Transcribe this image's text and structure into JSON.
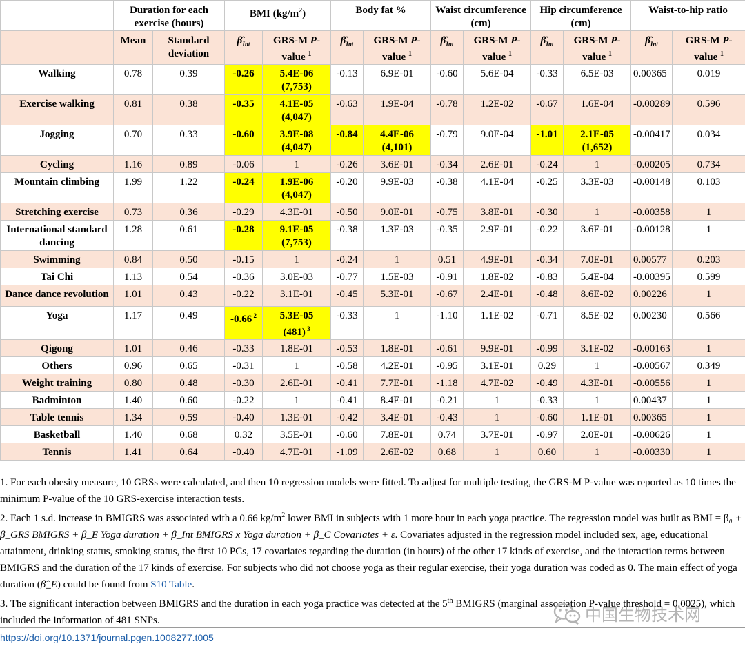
{
  "header": {
    "groups": [
      {
        "label": "Duration for each exercise (hours)",
        "span": 2
      },
      {
        "label": "BMI (kg/m",
        "sup": "2",
        "tail": ")",
        "span": 2
      },
      {
        "label": "Body fat %",
        "span": 2
      },
      {
        "label": "Waist circumference (cm)",
        "span": 2
      },
      {
        "label": "Hip circumference (cm)",
        "span": 2
      },
      {
        "label": "Waist-to-hip ratio",
        "span": 2
      }
    ],
    "sub_mean": "Mean",
    "sub_sd": "Standard deviation",
    "beta_symbol": "β̂",
    "beta_sub": "Int",
    "grs_label": "GRS-M",
    "p_label": "P",
    "value_label": "-value",
    "footnote_mark": "1"
  },
  "rows": [
    {
      "exercise": "Walking",
      "mean": "0.78",
      "sd": "0.39",
      "bmi_b": "-0.26",
      "bmi_p": "5.4E-06",
      "bmi_n": "(7,753)",
      "bf_b": "-0.13",
      "bf_p": "6.9E-01",
      "wc_b": "-0.60",
      "wc_p": "5.6E-04",
      "hc_b": "-0.33",
      "hc_p": "6.5E-03",
      "whr_b": "0.00365",
      "whr_p": "0.019"
    },
    {
      "exercise": "Exercise walking",
      "mean": "0.81",
      "sd": "0.38",
      "bmi_b": "-0.35",
      "bmi_p": "4.1E-05",
      "bmi_n": "(4,047)",
      "bf_b": "-0.63",
      "bf_p": "1.9E-04",
      "wc_b": "-0.78",
      "wc_p": "1.2E-02",
      "hc_b": "-0.67",
      "hc_p": "1.6E-04",
      "whr_b": "-0.00289",
      "whr_p": "0.596"
    },
    {
      "exercise": "Jogging",
      "mean": "0.70",
      "sd": "0.33",
      "bmi_b": "-0.60",
      "bmi_p": "3.9E-08",
      "bmi_n": "(4,047)",
      "bf_b": "-0.84",
      "bf_p": "4.4E-06",
      "bf_n": "(4,101)",
      "wc_b": "-0.79",
      "wc_p": "9.0E-04",
      "hc_b": "-1.01",
      "hc_p": "2.1E-05",
      "hc_n": "(1,652)",
      "whr_b": "-0.00417",
      "whr_p": "0.034"
    },
    {
      "exercise": "Cycling",
      "mean": "1.16",
      "sd": "0.89",
      "bmi_b": "-0.06",
      "bmi_p": "1",
      "bf_b": "-0.26",
      "bf_p": "3.6E-01",
      "wc_b": "-0.34",
      "wc_p": "2.6E-01",
      "hc_b": "-0.24",
      "hc_p": "1",
      "whr_b": "-0.00205",
      "whr_p": "0.734"
    },
    {
      "exercise": "Mountain climbing",
      "mean": "1.99",
      "sd": "1.22",
      "bmi_b": "-0.24",
      "bmi_p": "1.9E-06",
      "bmi_n": "(4,047)",
      "bf_b": "-0.20",
      "bf_p": "9.9E-03",
      "wc_b": "-0.38",
      "wc_p": "4.1E-04",
      "hc_b": "-0.25",
      "hc_p": "3.3E-03",
      "whr_b": "-0.00148",
      "whr_p": "0.103"
    },
    {
      "exercise": "Stretching exercise",
      "mean": "0.73",
      "sd": "0.36",
      "bmi_b": "-0.29",
      "bmi_p": "4.3E-01",
      "bf_b": "-0.50",
      "bf_p": "9.0E-01",
      "wc_b": "-0.75",
      "wc_p": "3.8E-01",
      "hc_b": "-0.30",
      "hc_p": "1",
      "whr_b": "-0.00358",
      "whr_p": "1"
    },
    {
      "exercise": "International standard dancing",
      "mean": "1.28",
      "sd": "0.61",
      "bmi_b": "-0.28",
      "bmi_p": "9.1E-05",
      "bmi_n": "(7,753)",
      "bf_b": "-0.38",
      "bf_p": "1.3E-03",
      "wc_b": "-0.35",
      "wc_p": "2.9E-01",
      "hc_b": "-0.22",
      "hc_p": "3.6E-01",
      "whr_b": "-0.00128",
      "whr_p": "1"
    },
    {
      "exercise": "Swimming",
      "mean": "0.84",
      "sd": "0.50",
      "bmi_b": "-0.15",
      "bmi_p": "1",
      "bf_b": "-0.24",
      "bf_p": "1",
      "wc_b": "0.51",
      "wc_p": "4.9E-01",
      "hc_b": "-0.34",
      "hc_p": "7.0E-01",
      "whr_b": "0.00577",
      "whr_p": "0.203"
    },
    {
      "exercise": "Tai Chi",
      "mean": "1.13",
      "sd": "0.54",
      "bmi_b": "-0.36",
      "bmi_p": "3.0E-03",
      "bf_b": "-0.77",
      "bf_p": "1.5E-03",
      "wc_b": "-0.91",
      "wc_p": "1.8E-02",
      "hc_b": "-0.83",
      "hc_p": "5.4E-04",
      "whr_b": "-0.00395",
      "whr_p": "0.599"
    },
    {
      "exercise": "Dance dance revolution",
      "mean": "1.01",
      "sd": "0.43",
      "bmi_b": "-0.22",
      "bmi_p": "3.1E-01",
      "bf_b": "-0.45",
      "bf_p": "5.3E-01",
      "wc_b": "-0.67",
      "wc_p": "2.4E-01",
      "hc_b": "-0.48",
      "hc_p": "8.6E-02",
      "whr_b": "0.00226",
      "whr_p": "1"
    },
    {
      "exercise": "Yoga",
      "mean": "1.17",
      "sd": "0.49",
      "bmi_b": "-0.66",
      "bmi_b_sup": "2",
      "bmi_p": "5.3E-05",
      "bmi_n": "(481)",
      "bmi_n_sup": "3",
      "bf_b": "-0.33",
      "bf_p": "1",
      "wc_b": "-1.10",
      "wc_p": "1.1E-02",
      "hc_b": "-0.71",
      "hc_p": "8.5E-02",
      "whr_b": "0.00230",
      "whr_p": "0.566"
    },
    {
      "exercise": "Qigong",
      "mean": "1.01",
      "sd": "0.46",
      "bmi_b": "-0.33",
      "bmi_p": "1.8E-01",
      "bf_b": "-0.53",
      "bf_p": "1.8E-01",
      "wc_b": "-0.61",
      "wc_p": "9.9E-01",
      "hc_b": "-0.99",
      "hc_p": "3.1E-02",
      "whr_b": "-0.00163",
      "whr_p": "1"
    },
    {
      "exercise": "Others",
      "mean": "0.96",
      "sd": "0.65",
      "bmi_b": "-0.31",
      "bmi_p": "1",
      "bf_b": "-0.58",
      "bf_p": "4.2E-01",
      "wc_b": "-0.95",
      "wc_p": "3.1E-01",
      "hc_b": "0.29",
      "hc_p": "1",
      "whr_b": "-0.00567",
      "whr_p": "0.349"
    },
    {
      "exercise": "Weight training",
      "mean": "0.80",
      "sd": "0.48",
      "bmi_b": "-0.30",
      "bmi_p": "2.6E-01",
      "bf_b": "-0.41",
      "bf_p": "7.7E-01",
      "wc_b": "-1.18",
      "wc_p": "4.7E-02",
      "hc_b": "-0.49",
      "hc_p": "4.3E-01",
      "whr_b": "-0.00556",
      "whr_p": "1"
    },
    {
      "exercise": "Badminton",
      "mean": "1.40",
      "sd": "0.60",
      "bmi_b": "-0.22",
      "bmi_p": "1",
      "bf_b": "-0.41",
      "bf_p": "8.4E-01",
      "wc_b": "-0.21",
      "wc_p": "1",
      "hc_b": "-0.33",
      "hc_p": "1",
      "whr_b": "0.00437",
      "whr_p": "1"
    },
    {
      "exercise": "Table tennis",
      "mean": "1.34",
      "sd": "0.59",
      "bmi_b": "-0.40",
      "bmi_p": "1.3E-01",
      "bf_b": "-0.42",
      "bf_p": "3.4E-01",
      "wc_b": "-0.43",
      "wc_p": "1",
      "hc_b": "-0.60",
      "hc_p": "1.1E-01",
      "whr_b": "0.00365",
      "whr_p": "1"
    },
    {
      "exercise": "Basketball",
      "mean": "1.40",
      "sd": "0.68",
      "bmi_b": "0.32",
      "bmi_p": "3.5E-01",
      "bf_b": "-0.60",
      "bf_p": "7.8E-01",
      "wc_b": "0.74",
      "wc_p": "3.7E-01",
      "hc_b": "-0.97",
      "hc_p": "2.0E-01",
      "whr_b": "-0.00626",
      "whr_p": "1"
    },
    {
      "exercise": "Tennis",
      "mean": "1.41",
      "sd": "0.64",
      "bmi_b": "-0.40",
      "bmi_p": "4.7E-01",
      "bf_b": "-1.09",
      "bf_p": "2.6E-02",
      "wc_b": "0.68",
      "wc_p": "1",
      "hc_b": "0.60",
      "hc_p": "1",
      "whr_b": "-0.00330",
      "whr_p": "1"
    }
  ],
  "highlighted": [
    [
      0,
      "bmi"
    ],
    [
      1,
      "bmi"
    ],
    [
      2,
      "bmi"
    ],
    [
      2,
      "bf"
    ],
    [
      2,
      "hc"
    ],
    [
      4,
      "bmi"
    ],
    [
      6,
      "bmi"
    ],
    [
      10,
      "bmi"
    ]
  ],
  "notes": {
    "n1": "1. For each obesity measure, 10 GRSs were calculated, and then 10 regression models were fitted. To adjust for multiple testing, the GRS-M P-value was reported as 10 times the minimum P-value of the 10 GRS-exercise interaction tests.",
    "n2a": "2. Each 1 s.d. increase in BMIGRS was associated with a 0.66 kg/m",
    "n2a_sup": "2",
    "n2b": " lower BMI in subjects with 1 more hour in each yoga practice. The regression model was built as BMI = β",
    "n2_formula": "₀ + β_GRS BMIGRS + β_E Yoga duration + β_Int BMIGRS x Yoga duration + β_C Covariates + ε",
    "n2c": ". Covariates adjusted in the regression model included sex, age, educational attainment, drinking status, smoking status, the first 10 PCs, 17 covariates regarding the duration (in hours) of the other 17 kinds of exercise, and the interaction terms between BMIGRS and the duration of the 17 kinds of exercise. For subjects who did not choose yoga as their regular exercise, their yoga duration was coded as 0. The main effect of yoga duration (",
    "n2_beta_e": "β̂_E",
    "n2d": ") could be found from ",
    "n2_link": "S10 Table",
    "n2e": ".",
    "n3a": "3. The significant interaction between BMIGRS and the duration in each yoga practice was detected at the 5",
    "n3_sup": "th",
    "n3b": " BMIGRS (marginal association P-value threshold = 0.0025), which included the information of 481 SNPs."
  },
  "doi": "https://doi.org/10.1371/journal.pgen.1008277.t005",
  "watermark": "中国生物技术网",
  "colors": {
    "highlight": "#ffff00",
    "band": "#fbe3d6",
    "link": "#1a5ca8"
  }
}
